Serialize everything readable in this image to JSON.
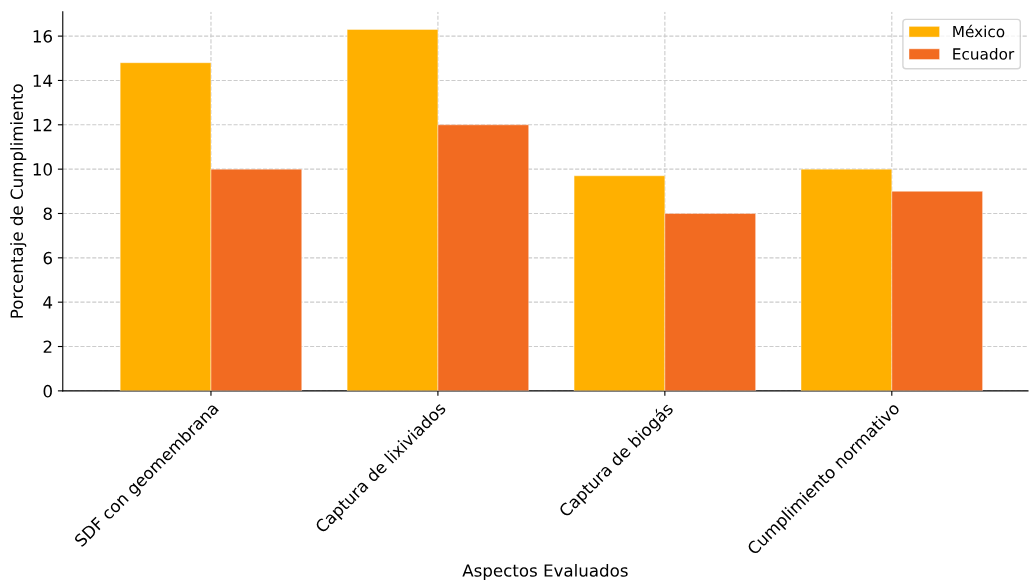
{
  "chart_data": {
    "type": "bar",
    "xlabel": "Aspectos Evaluados",
    "ylabel": "Porcentaje de Cumplimiento",
    "categories": [
      "SDF con geomembrana",
      "Captura de lixiviados",
      "Captura de biogás",
      "Cumplimiento normativo"
    ],
    "series": [
      {
        "name": "México",
        "color": "#ffb000",
        "values": [
          14.8,
          16.3,
          9.7,
          10
        ]
      },
      {
        "name": "Ecuador",
        "color": "#f26b21",
        "values": [
          10,
          12,
          8,
          9
        ]
      }
    ],
    "ylim": [
      0,
      17.1
    ],
    "yticks": [
      0,
      2,
      4,
      6,
      8,
      10,
      12,
      14,
      16
    ],
    "grid": true,
    "legend": "top right"
  }
}
